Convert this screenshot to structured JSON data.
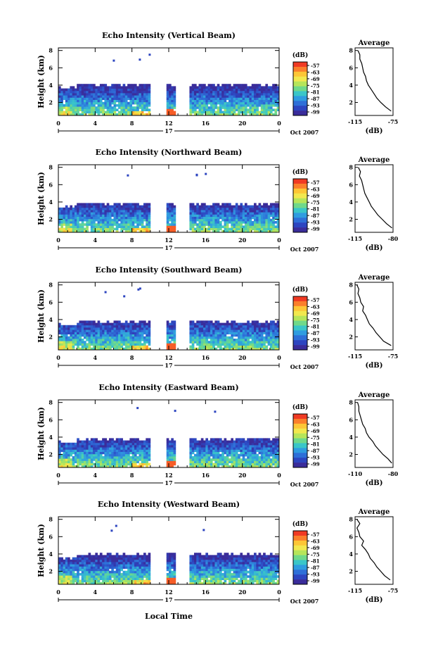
{
  "figure": {
    "date_label": "Oct 2007",
    "day_label": "17",
    "xlabel": "Local Time",
    "cbar_unit": "(dB)",
    "cbar_ticks": [
      "-57",
      "-63",
      "-69",
      "-75",
      "-81",
      "-87",
      "-93",
      "-99"
    ],
    "cbar_colors": [
      "#f03a23",
      "#fb7f2b",
      "#fdc636",
      "#f2e84e",
      "#b6e55a",
      "#6fd98a",
      "#3ac6c8",
      "#2f9ce0",
      "#2e6fd8",
      "#2d45c0",
      "#3a2c9a"
    ],
    "avg_title": "Average",
    "avg_xlabel": "(dB)",
    "heatmap_colors": {
      "low": "#2f3a9c",
      "mid": "#33a5e6",
      "high": "#f3e649",
      "peak": "#f0501f"
    }
  },
  "chart_data": [
    {
      "type": "heatmap",
      "title": "Echo Intensity (Vertical Beam)",
      "xlabel": "",
      "ylabel": "Height (km)",
      "x_ticks": [
        "0",
        "4",
        "8",
        "12",
        "16",
        "20",
        "0"
      ],
      "y_ticks": [
        "2",
        "4",
        "6",
        "8"
      ],
      "xlim": [
        0,
        24
      ],
      "ylim": [
        0.5,
        8.3
      ],
      "data_gaps_hours": [
        [
          10.1,
          11.7
        ],
        [
          12.7,
          14.2
        ]
      ],
      "echo_top_km": 4.1,
      "profile": {
        "title": "Average",
        "xlabel": "(dB)",
        "x_ticks": [
          "-115",
          "-75"
        ],
        "xlim": [
          -115,
          -75
        ],
        "y_ticks": [
          "2",
          "4",
          "6",
          "8"
        ],
        "ylim": [
          0.5,
          8.3
        ],
        "height_km": [
          1.0,
          1.5,
          2.0,
          2.5,
          3.0,
          3.5,
          4.0,
          4.5,
          5.0,
          5.5,
          6.0,
          6.5,
          7.0,
          7.5,
          8.0
        ],
        "mean_db": [
          -77,
          -83,
          -88,
          -92,
          -95,
          -98,
          -101,
          -103,
          -104,
          -106,
          -107,
          -108,
          -110,
          -110,
          -112
        ]
      }
    },
    {
      "type": "heatmap",
      "title": "Echo Intensity (Northward Beam)",
      "xlabel": "",
      "ylabel": "Height (km)",
      "x_ticks": [
        "0",
        "4",
        "8",
        "12",
        "16",
        "20",
        "0"
      ],
      "y_ticks": [
        "2",
        "4",
        "6",
        "8"
      ],
      "xlim": [
        0,
        24
      ],
      "ylim": [
        0.5,
        8.3
      ],
      "data_gaps_hours": [
        [
          10.1,
          11.7
        ],
        [
          12.7,
          14.2
        ]
      ],
      "echo_top_km": 3.8,
      "profile": {
        "title": "Average",
        "xlabel": "(dB)",
        "x_ticks": [
          "-115",
          "-80"
        ],
        "xlim": [
          -115,
          -80
        ],
        "y_ticks": [
          "2",
          "4",
          "6",
          "8"
        ],
        "ylim": [
          0.5,
          8.3
        ],
        "height_km": [
          1.0,
          1.5,
          2.0,
          2.5,
          3.0,
          3.5,
          4.0,
          4.5,
          5.0,
          5.5,
          6.0,
          6.5,
          7.0,
          7.5,
          8.0
        ],
        "mean_db": [
          -81,
          -86,
          -90,
          -94,
          -97,
          -100,
          -102,
          -104,
          -106,
          -107,
          -108,
          -109,
          -111,
          -110,
          -112
        ]
      }
    },
    {
      "type": "heatmap",
      "title": "Echo Intensity (Southward Beam)",
      "xlabel": "",
      "ylabel": "Height (km)",
      "x_ticks": [
        "0",
        "4",
        "8",
        "12",
        "16",
        "20",
        "0"
      ],
      "y_ticks": [
        "2",
        "4",
        "6",
        "8"
      ],
      "xlim": [
        0,
        24
      ],
      "ylim": [
        0.5,
        8.3
      ],
      "data_gaps_hours": [
        [
          10.1,
          11.7
        ],
        [
          12.7,
          14.2
        ]
      ],
      "echo_top_km": 3.8,
      "profile": {
        "title": "Average",
        "xlabel": "(dB)",
        "x_ticks": [
          "-115",
          "-75"
        ],
        "xlim": [
          -115,
          -75
        ],
        "y_ticks": [
          "2",
          "4",
          "6",
          "8"
        ],
        "ylim": [
          0.5,
          8.3
        ],
        "height_km": [
          1.0,
          1.5,
          2.0,
          2.5,
          3.0,
          3.5,
          4.0,
          4.5,
          5.0,
          5.5,
          6.0,
          6.5,
          7.0,
          7.5,
          8.0
        ],
        "mean_db": [
          -77,
          -85,
          -89,
          -93,
          -96,
          -100,
          -102,
          -104,
          -107,
          -106,
          -109,
          -110,
          -112,
          -111,
          -113
        ]
      }
    },
    {
      "type": "heatmap",
      "title": "Echo Intensity (Eastward Beam)",
      "xlabel": "",
      "ylabel": "Height (km)",
      "x_ticks": [
        "0",
        "4",
        "8",
        "12",
        "16",
        "20",
        "0"
      ],
      "y_ticks": [
        "2",
        "4",
        "6",
        "8"
      ],
      "xlim": [
        0,
        24
      ],
      "ylim": [
        0.5,
        8.3
      ],
      "data_gaps_hours": [
        [
          10.1,
          11.7
        ],
        [
          12.7,
          14.2
        ]
      ],
      "echo_top_km": 3.8,
      "profile": {
        "title": "Average",
        "xlabel": "(dB)",
        "x_ticks": [
          "-110",
          "-80"
        ],
        "xlim": [
          -110,
          -80
        ],
        "y_ticks": [
          "2",
          "4",
          "6",
          "8"
        ],
        "ylim": [
          0.5,
          8.3
        ],
        "height_km": [
          1.0,
          1.5,
          2.0,
          2.5,
          3.0,
          3.5,
          4.0,
          4.5,
          5.0,
          5.5,
          6.0,
          6.5,
          7.0,
          7.5,
          8.0
        ],
        "mean_db": [
          -81,
          -84,
          -88,
          -91,
          -94,
          -96,
          -99,
          -101,
          -102,
          -104,
          -105,
          -106,
          -107,
          -107,
          -108
        ]
      }
    },
    {
      "type": "heatmap",
      "title": "Echo Intensity (Westward Beam)",
      "xlabel": "Local Time",
      "ylabel": "Height (km)",
      "x_ticks": [
        "0",
        "4",
        "8",
        "12",
        "16",
        "20",
        "0"
      ],
      "y_ticks": [
        "2",
        "4",
        "6",
        "8"
      ],
      "xlim": [
        0,
        24
      ],
      "ylim": [
        0.5,
        8.3
      ],
      "data_gaps_hours": [
        [
          10.1,
          11.7
        ],
        [
          12.7,
          14.2
        ]
      ],
      "echo_top_km": 4.0,
      "profile": {
        "title": "Average",
        "xlabel": "(dB)",
        "x_ticks": [
          "-115",
          "-75"
        ],
        "xlim": [
          -115,
          -75
        ],
        "y_ticks": [
          "2",
          "4",
          "6",
          "8"
        ],
        "ylim": [
          0.5,
          8.3
        ],
        "height_km": [
          1.0,
          1.5,
          2.0,
          2.5,
          3.0,
          3.5,
          4.0,
          4.5,
          5.0,
          5.5,
          6.0,
          6.5,
          7.0,
          7.5,
          8.0
        ],
        "mean_db": [
          -78,
          -84,
          -88,
          -92,
          -95,
          -99,
          -101,
          -104,
          -108,
          -106,
          -110,
          -111,
          -113,
          -110,
          -113
        ]
      }
    }
  ]
}
